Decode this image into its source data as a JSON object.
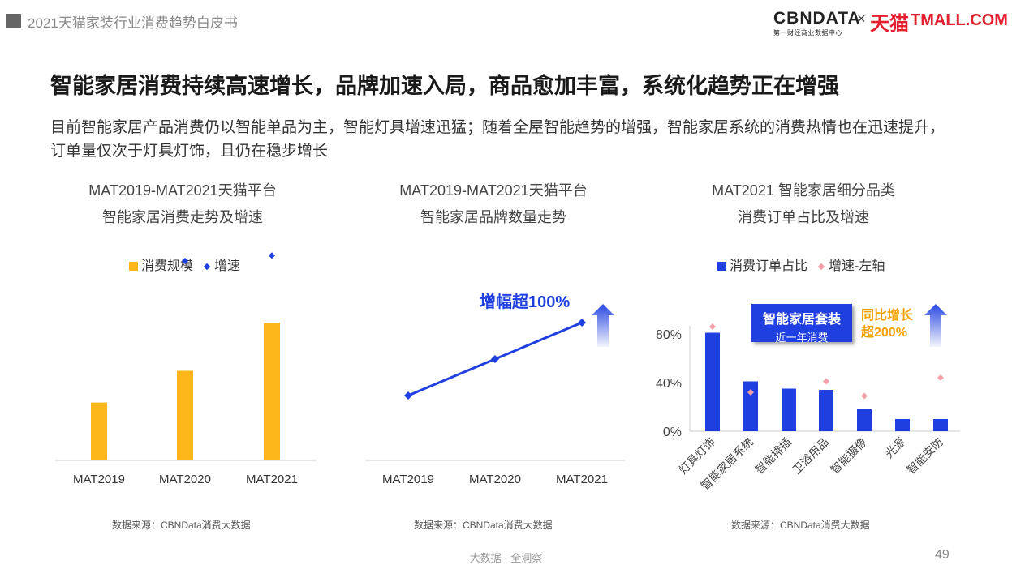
{
  "header": {
    "report_title": "2021天猫家装行业消费趋势白皮书",
    "logo_cbn": "CBNDATA",
    "logo_cbn_sub": "第一财经商业数据中心",
    "logo_x": "×",
    "logo_tmall_cn": "天猫",
    "logo_tmall_en": "TMALL.COM"
  },
  "headline": "智能家居消费持续高速增长，品牌加速入局，商品愈加丰富，系统化趋势正在增强",
  "subtext": "目前智能家居产品消费仍以智能单品为主，智能灯具增速迅猛；随着全屋智能趋势的增强，智能家居系统的消费热情也在迅速提升，订单量仅次于灯具灯饰，且仍在稳步增长",
  "colors": {
    "orange": "#fdb71a",
    "blue": "#1f3fe0",
    "pink": "#f4a0a8",
    "axis": "#cccccc"
  },
  "chart_data": [
    {
      "type": "bar",
      "title_line1": "MAT2019-MAT2021天猫平台",
      "title_line2": "智能家居消费走势及增速",
      "categories": [
        "MAT2019",
        "MAT2020",
        "MAT2021"
      ],
      "series": [
        {
          "name": "消费规模",
          "type": "bar",
          "values": [
            0.42,
            0.65,
            1.0
          ]
        },
        {
          "name": "增速",
          "type": "scatter",
          "values": [
            null,
            0.8,
            0.82
          ]
        }
      ],
      "grid": false,
      "legend": "top",
      "source": "数据来源：CBNData消费大数据"
    },
    {
      "type": "line",
      "title_line1": "MAT2019-MAT2021天猫平台",
      "title_line2": "智能家居品牌数量走势",
      "categories": [
        "MAT2019",
        "MAT2020",
        "MAT2021"
      ],
      "series": [
        {
          "name": "",
          "values": [
            1.0,
            1.5,
            2.0
          ]
        }
      ],
      "annotation": "增幅超100%",
      "grid": false,
      "source": "数据来源：CBNData消费大数据"
    },
    {
      "type": "bar",
      "title_line1": "MAT2021 智能家居细分品类",
      "title_line2": "消费订单占比及增速",
      "categories": [
        "灯具灯饰",
        "智能家居系统",
        "智能排插",
        "卫浴用品",
        "智能摄像",
        "光源",
        "智能安防"
      ],
      "yticks": [
        "80%",
        "40%",
        "0%"
      ],
      "ylim": [
        0,
        0.9
      ],
      "series": [
        {
          "name": "消费订单占比",
          "type": "bar",
          "values": [
            0.81,
            0.41,
            0.35,
            0.34,
            0.18,
            0.1,
            0.1
          ]
        },
        {
          "name": "增速-左轴",
          "type": "scatter",
          "values": [
            0.86,
            0.32,
            null,
            0.41,
            0.29,
            null,
            0.44
          ]
        }
      ],
      "callout_box_line1": "智能家居套装",
      "callout_box_line2": "近一年消费",
      "callout_growth_line1": "同比增长",
      "callout_growth_line2": "超200%",
      "grid": false,
      "legend": "top",
      "source": "数据来源：CBNData消费大数据"
    }
  ],
  "footer": {
    "text": "大数据 · 全洞察",
    "page": "49"
  }
}
